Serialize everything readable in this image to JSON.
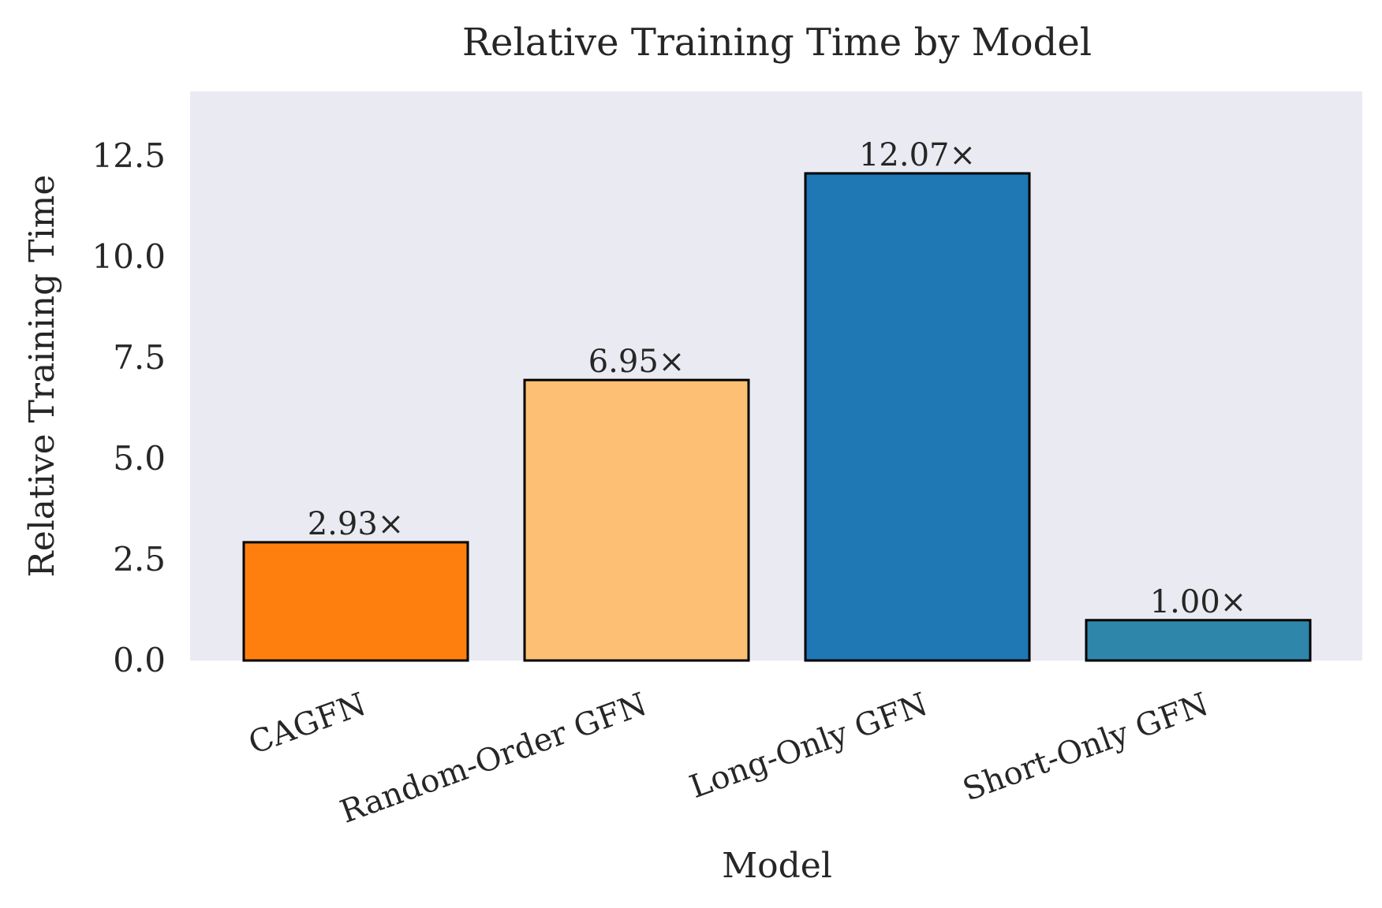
{
  "chart_data": {
    "type": "bar",
    "title": "Relative Training Time by Model",
    "xlabel": "Model",
    "ylabel": "Relative Training Time",
    "categories": [
      "CAGFN",
      "Random-Order GFN",
      "Long-Only GFN",
      "Short-Only GFN"
    ],
    "values": [
      2.93,
      6.95,
      12.07,
      1.0
    ],
    "value_labels": [
      "2.93×",
      "6.95×",
      "12.07×",
      "1.00×"
    ],
    "colors": [
      "#ff7f0e",
      "#fdbf74",
      "#1f77b4",
      "#2e86ab"
    ],
    "ylim": [
      0,
      14.1
    ],
    "yticks": [
      0.0,
      2.5,
      5.0,
      7.5,
      10.0,
      12.5
    ],
    "ytick_labels": [
      "0.0",
      "2.5",
      "5.0",
      "7.5",
      "10.0",
      "12.5"
    ],
    "grid": false,
    "background": "#eaeaf2"
  }
}
